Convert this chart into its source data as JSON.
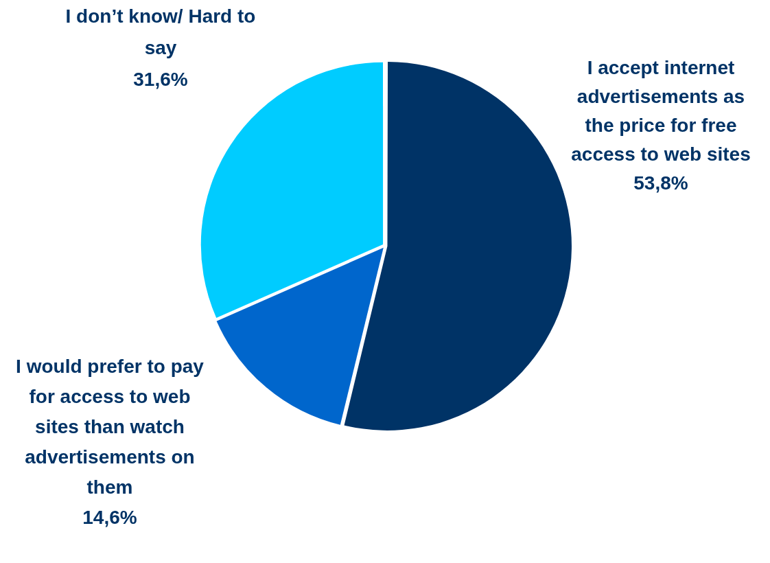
{
  "chart_data": {
    "type": "pie",
    "categories": [
      "I accept internet advertisements as the price for free access to web sites",
      "I would prefer to pay for access to web sites than watch advertisements on them",
      "I don’t know/ Hard to say"
    ],
    "values": [
      53.8,
      14.6,
      31.6
    ],
    "colors": [
      "#003366",
      "#0066cc",
      "#00ccff"
    ],
    "value_labels": [
      "53,8%",
      "14,6%",
      "31,6%"
    ]
  }
}
